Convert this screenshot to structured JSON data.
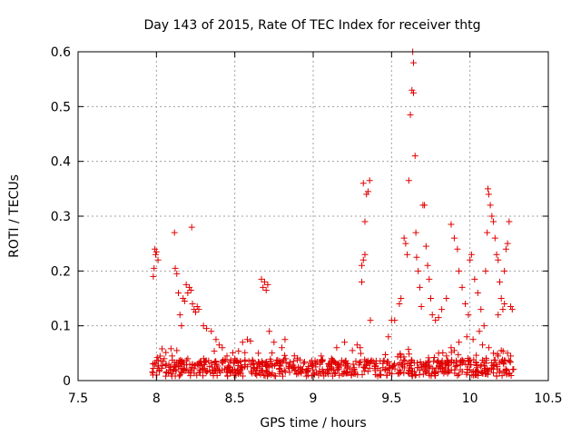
{
  "chart_data": {
    "type": "scatter",
    "title": "Day 143 of 2015, Rate Of TEC Index for receiver thtg",
    "xlabel": "GPS time / hours",
    "ylabel": "ROTI / TECUs",
    "xlim": [
      7.5,
      10.5
    ],
    "ylim": [
      0,
      0.6
    ],
    "x_ticks": [
      7.5,
      8,
      8.5,
      9,
      9.5,
      10,
      10.5
    ],
    "x_tick_labels": [
      "7.5",
      "8",
      "8.5",
      "9",
      "9.5",
      "10",
      "10.5"
    ],
    "y_ticks": [
      0,
      0.1,
      0.2,
      0.3,
      0.4,
      0.5,
      0.6
    ],
    "y_tick_labels": [
      "0",
      "0.1",
      "0.2",
      "0.3",
      "0.4",
      "0.5",
      "0.6"
    ],
    "grid": true,
    "marker": "+",
    "marker_color": "#e00000",
    "grid_color": "#a0a0a0",
    "series": [
      {
        "name": "ROTI",
        "points": [
          [
            7.98,
            0.19
          ],
          [
            7.985,
            0.205
          ],
          [
            7.99,
            0.24
          ],
          [
            7.995,
            0.23
          ],
          [
            8.0,
            0.235
          ],
          [
            8.01,
            0.22
          ],
          [
            8.115,
            0.27
          ],
          [
            8.12,
            0.205
          ],
          [
            8.13,
            0.195
          ],
          [
            8.14,
            0.16
          ],
          [
            8.15,
            0.12
          ],
          [
            8.16,
            0.1
          ],
          [
            8.17,
            0.15
          ],
          [
            8.18,
            0.145
          ],
          [
            8.19,
            0.175
          ],
          [
            8.2,
            0.16
          ],
          [
            8.21,
            0.17
          ],
          [
            8.22,
            0.165
          ],
          [
            8.225,
            0.28
          ],
          [
            8.23,
            0.14
          ],
          [
            8.24,
            0.13
          ],
          [
            8.25,
            0.125
          ],
          [
            8.26,
            0.135
          ],
          [
            8.27,
            0.13
          ],
          [
            8.3,
            0.1
          ],
          [
            8.32,
            0.095
          ],
          [
            8.35,
            0.09
          ],
          [
            8.38,
            0.075
          ],
          [
            8.4,
            0.065
          ],
          [
            8.42,
            0.06
          ],
          [
            8.45,
            0.045
          ],
          [
            8.5,
            0.04
          ],
          [
            8.55,
            0.07
          ],
          [
            8.58,
            0.075
          ],
          [
            8.6,
            0.072
          ],
          [
            8.67,
            0.185
          ],
          [
            8.68,
            0.17
          ],
          [
            8.69,
            0.18
          ],
          [
            8.7,
            0.165
          ],
          [
            8.71,
            0.175
          ],
          [
            8.65,
            0.05
          ],
          [
            8.72,
            0.09
          ],
          [
            8.75,
            0.07
          ],
          [
            8.8,
            0.06
          ],
          [
            8.82,
            0.075
          ],
          [
            8.05,
            0.04
          ],
          [
            8.1,
            0.045
          ],
          [
            8.13,
            0.055
          ],
          [
            8.2,
            0.04
          ],
          [
            8.28,
            0.035
          ],
          [
            9.15,
            0.06
          ],
          [
            9.2,
            0.07
          ],
          [
            9.25,
            0.055
          ],
          [
            9.28,
            0.065
          ],
          [
            9.3,
            0.06
          ],
          [
            9.31,
            0.18
          ],
          [
            9.32,
            0.22
          ],
          [
            9.33,
            0.29
          ],
          [
            9.34,
            0.34
          ],
          [
            9.35,
            0.345
          ],
          [
            9.36,
            0.365
          ],
          [
            9.365,
            0.11
          ],
          [
            9.33,
            0.23
          ],
          [
            9.31,
            0.21
          ],
          [
            9.32,
            0.36
          ],
          [
            9.48,
            0.08
          ],
          [
            9.5,
            0.11
          ],
          [
            9.52,
            0.11
          ],
          [
            9.55,
            0.14
          ],
          [
            9.56,
            0.15
          ],
          [
            9.58,
            0.26
          ],
          [
            9.59,
            0.25
          ],
          [
            9.6,
            0.23
          ],
          [
            9.61,
            0.365
          ],
          [
            9.62,
            0.485
          ],
          [
            9.63,
            0.53
          ],
          [
            9.64,
            0.525
          ],
          [
            9.635,
            0.6
          ],
          [
            9.64,
            0.58
          ],
          [
            9.65,
            0.41
          ],
          [
            9.655,
            0.27
          ],
          [
            9.66,
            0.225
          ],
          [
            9.67,
            0.2
          ],
          [
            9.68,
            0.17
          ],
          [
            9.69,
            0.135
          ],
          [
            9.7,
            0.32
          ],
          [
            9.71,
            0.32
          ],
          [
            9.72,
            0.245
          ],
          [
            9.73,
            0.21
          ],
          [
            9.74,
            0.185
          ],
          [
            9.75,
            0.15
          ],
          [
            9.76,
            0.12
          ],
          [
            9.78,
            0.11
          ],
          [
            9.8,
            0.115
          ],
          [
            9.82,
            0.13
          ],
          [
            9.85,
            0.15
          ],
          [
            9.88,
            0.285
          ],
          [
            9.9,
            0.26
          ],
          [
            9.92,
            0.24
          ],
          [
            9.93,
            0.2
          ],
          [
            9.95,
            0.17
          ],
          [
            9.97,
            0.14
          ],
          [
            9.99,
            0.12
          ],
          [
            10.0,
            0.22
          ],
          [
            10.01,
            0.23
          ],
          [
            10.03,
            0.185
          ],
          [
            10.05,
            0.16
          ],
          [
            10.07,
            0.13
          ],
          [
            10.09,
            0.1
          ],
          [
            10.1,
            0.2
          ],
          [
            10.11,
            0.27
          ],
          [
            10.115,
            0.35
          ],
          [
            10.12,
            0.34
          ],
          [
            10.13,
            0.32
          ],
          [
            10.14,
            0.3
          ],
          [
            10.15,
            0.29
          ],
          [
            10.16,
            0.26
          ],
          [
            10.17,
            0.23
          ],
          [
            10.18,
            0.22
          ],
          [
            10.19,
            0.18
          ],
          [
            10.2,
            0.15
          ],
          [
            10.21,
            0.13
          ],
          [
            10.22,
            0.2
          ],
          [
            10.23,
            0.24
          ],
          [
            10.24,
            0.25
          ],
          [
            10.25,
            0.29
          ],
          [
            10.26,
            0.135
          ],
          [
            10.27,
            0.13
          ],
          [
            10.22,
            0.14
          ],
          [
            10.18,
            0.12
          ],
          [
            9.98,
            0.08
          ],
          [
            10.02,
            0.075
          ],
          [
            10.06,
            0.09
          ],
          [
            10.08,
            0.065
          ],
          [
            10.12,
            0.06
          ],
          [
            10.15,
            0.05
          ],
          [
            10.18,
            0.045
          ],
          [
            10.2,
            0.055
          ],
          [
            10.24,
            0.05
          ],
          [
            10.26,
            0.045
          ],
          [
            9.88,
            0.06
          ],
          [
            9.9,
            0.055
          ],
          [
            9.93,
            0.07
          ],
          [
            9.85,
            0.045
          ],
          [
            9.8,
            0.05
          ]
        ]
      }
    ]
  }
}
